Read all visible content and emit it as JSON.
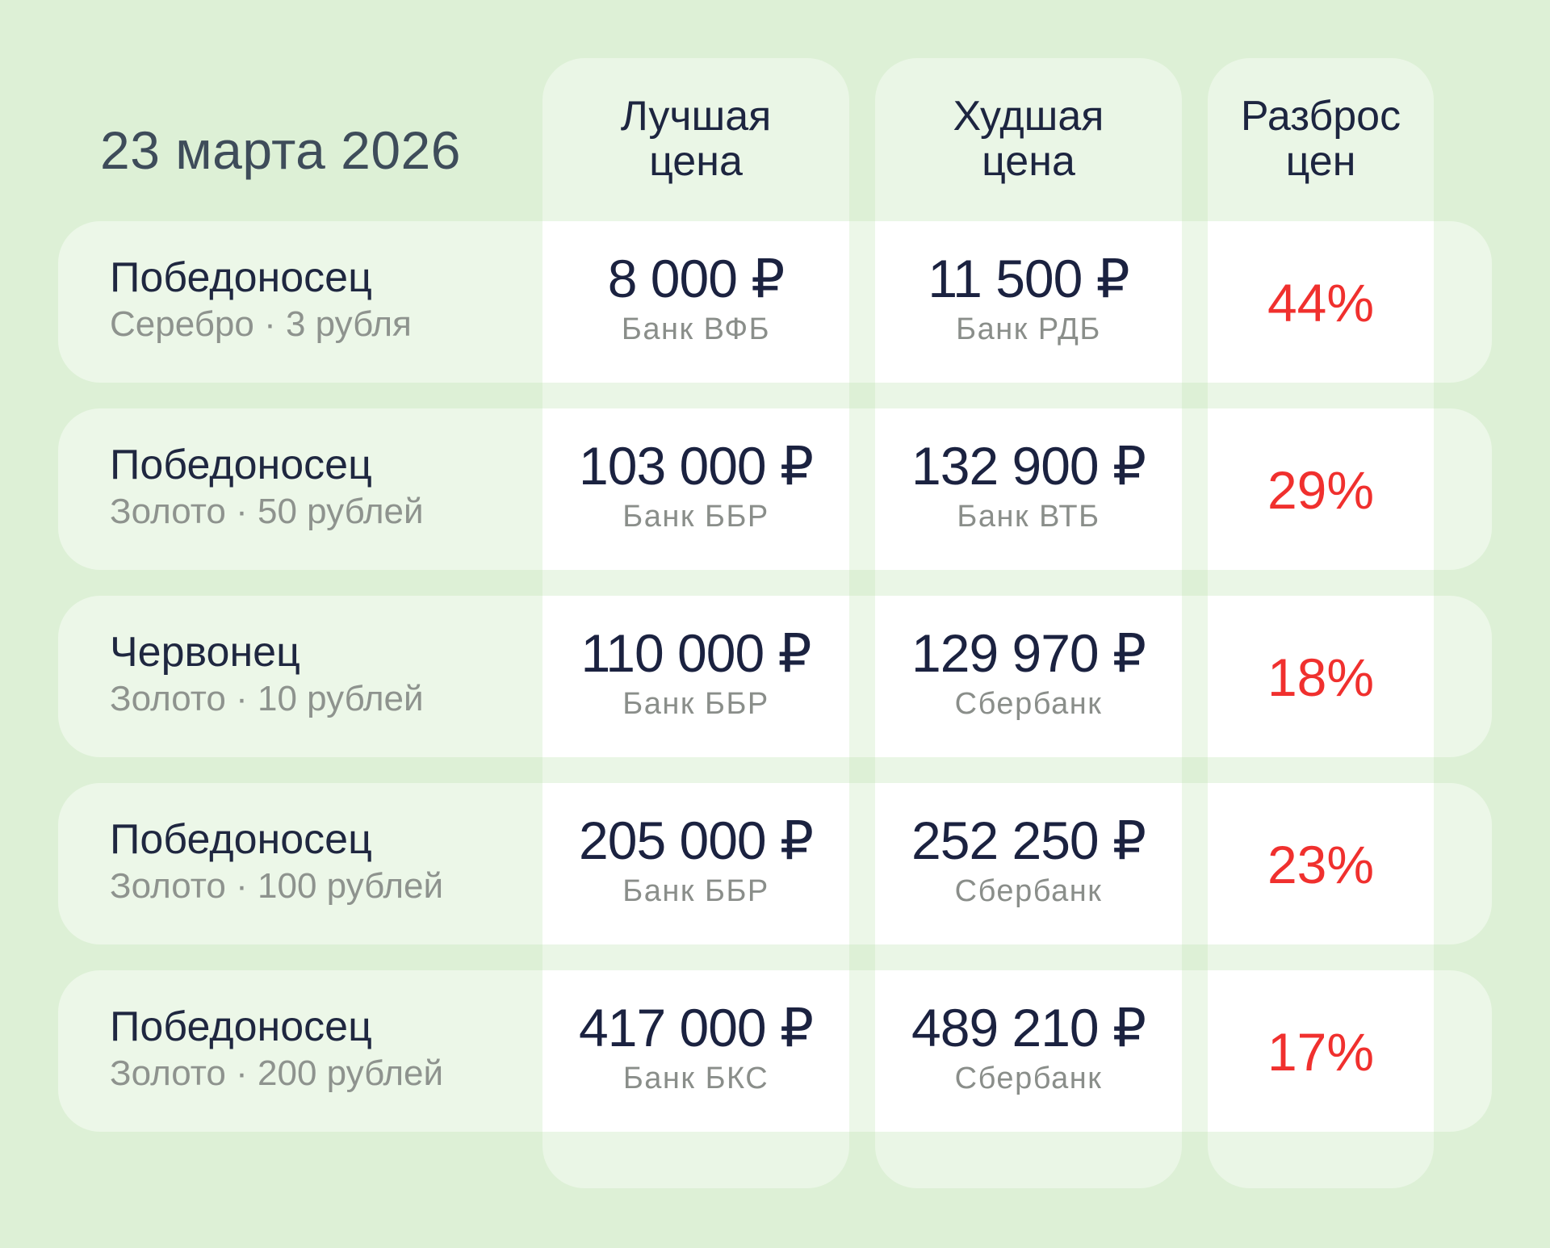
{
  "date": "23 марта 2026",
  "headers": {
    "best": [
      "Лучшая",
      "цена"
    ],
    "worst": [
      "Худшая",
      "цена"
    ],
    "spread": [
      "Разброс",
      "цен"
    ]
  },
  "rows": [
    {
      "name": "Победоносец",
      "metal": "Серебро",
      "denomination": "3 рубля",
      "best_price": "8 000 ₽",
      "best_bank": "Банк ВФБ",
      "worst_price": "11 500 ₽",
      "worst_bank": "Банк РДБ",
      "spread": "44%"
    },
    {
      "name": "Победоносец",
      "metal": "Золото",
      "denomination": "50 рублей",
      "best_price": "103 000 ₽",
      "best_bank": "Банк ББР",
      "worst_price": "132 900 ₽",
      "worst_bank": "Банк ВТБ",
      "spread": "29%"
    },
    {
      "name": "Червонец",
      "metal": "Золото",
      "denomination": "10 рублей",
      "best_price": "110 000 ₽",
      "best_bank": "Банк ББР",
      "worst_price": "129 970 ₽",
      "worst_bank": "Сбербанк",
      "spread": "18%"
    },
    {
      "name": "Победоносец",
      "metal": "Золото",
      "denomination": "100 рублей",
      "best_price": "205 000 ₽",
      "best_bank": "Банк ББР",
      "worst_price": "252 250 ₽",
      "worst_bank": "Сбербанк",
      "spread": "23%"
    },
    {
      "name": "Победоносец",
      "metal": "Золото",
      "denomination": "200 рублей",
      "best_price": "417 000 ₽",
      "best_bank": "Банк БКС",
      "worst_price": "489 210 ₽",
      "worst_bank": "Сбербанк",
      "spread": "17%"
    }
  ],
  "colors": {
    "background": "#ddf0d6",
    "spread_text": "#f0302e",
    "price_text": "#1b2240",
    "muted_text": "#8a8e8a"
  }
}
